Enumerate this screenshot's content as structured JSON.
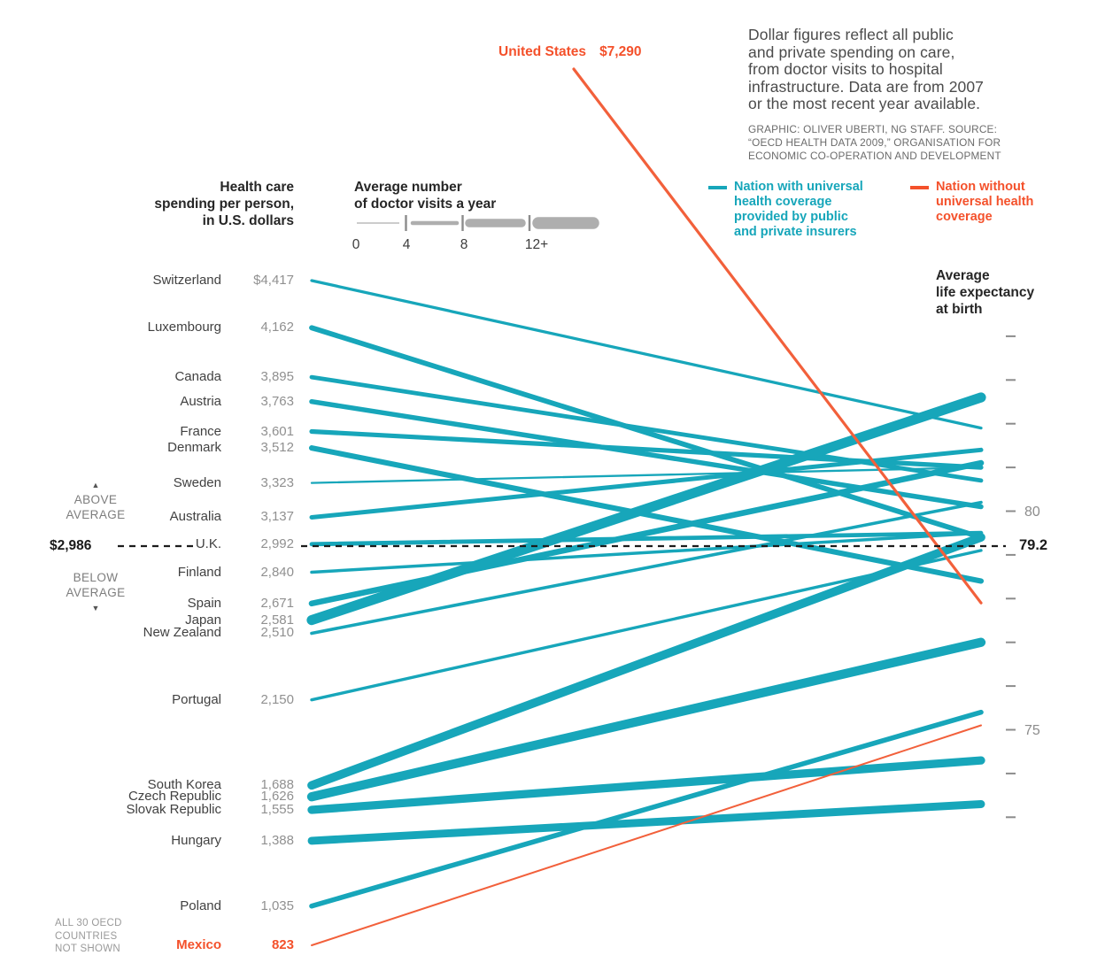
{
  "intro_note": "Dollar figures reflect all public\nand private spending on care,\nfrom doctor visits to hospital\ninfrastructure. Data are from 2007\nor the most recent year available.",
  "credit": "GRAPHIC: OLIVER UBERTI, NG STAFF. SOURCE:\n“OECD HEALTH DATA 2009,” ORGANISATION FOR\nECONOMIC CO-OPERATION AND DEVELOPMENT",
  "legend": {
    "universal": "Nation with universal\nhealth coverage\nprovided by public\nand private insurers",
    "no_universal": "Nation without\nuniversal health\ncoverage"
  },
  "left_axis": {
    "title": "Health care\nspending per person,\nin U.S. dollars",
    "above_average": "ABOVE\nAVERAGE",
    "below_average": "BELOW\nAVERAGE",
    "arrow_up": "▲",
    "arrow_down": "▼",
    "average_label": "$2,986"
  },
  "visits_scale": {
    "title": "Average number\nof doctor visits a year",
    "tick_labels": [
      "0",
      "4",
      "8",
      "12+"
    ]
  },
  "right_axis": {
    "title": "Average\nlife expectancy\nat birth",
    "average_label": "79.2"
  },
  "us_callout": {
    "name": "United States",
    "value": "$7,290"
  },
  "footnote": "ALL 30 OECD\nCOUNTRIES\nNOT SHOWN",
  "colors": {
    "teal": "#17a6ba",
    "orange": "#f4512b",
    "orange_line": "#f2603b",
    "scale_gray": "#aeaeae",
    "tick_gray": "#8c8c8c",
    "dash_black": "#1c1c1c"
  },
  "chart_data": {
    "type": "slopegraph",
    "title": "Health care spending per person vs. average life expectancy at birth (OECD, 2007)",
    "left_metric": "Health care spending per person, U.S. dollars",
    "right_metric": "Average life expectancy at birth, years",
    "thickness_metric": "Average number of doctor visits a year",
    "thickness_scale_ticks": [
      0,
      4,
      8,
      12
    ],
    "left_range": [
      823,
      4417
    ],
    "right_ticks": [
      84,
      83,
      82,
      81,
      80,
      79,
      78,
      77,
      76,
      75,
      74,
      73
    ],
    "right_labeled_ticks": [
      80,
      75
    ],
    "average": {
      "spending": 2986,
      "life_expectancy": 79.2
    },
    "countries": [
      {
        "name": "Switzerland",
        "spending": 4417,
        "spending_label": "$4,417",
        "doctor_visits": 4.0,
        "life_expectancy": 81.9,
        "universal_coverage": true
      },
      {
        "name": "Luxembourg",
        "spending": 4162,
        "spending_label": "4,162",
        "doctor_visits": 7.1,
        "life_expectancy": 79.4,
        "universal_coverage": true
      },
      {
        "name": "Canada",
        "spending": 3895,
        "spending_label": "3,895",
        "doctor_visits": 5.8,
        "life_expectancy": 80.7,
        "universal_coverage": true
      },
      {
        "name": "Austria",
        "spending": 3763,
        "spending_label": "3,763",
        "doctor_visits": 6.7,
        "life_expectancy": 80.1,
        "universal_coverage": true
      },
      {
        "name": "France",
        "spending": 3601,
        "spending_label": "3,601",
        "doctor_visits": 6.4,
        "life_expectancy": 81.0,
        "universal_coverage": true
      },
      {
        "name": "Denmark",
        "spending": 3512,
        "spending_label": "3,512",
        "doctor_visits": 7.5,
        "life_expectancy": 78.4,
        "universal_coverage": true
      },
      {
        "name": "Sweden",
        "spending": 3323,
        "spending_label": "3,323",
        "doctor_visits": 2.8,
        "life_expectancy": 81.0,
        "universal_coverage": true
      },
      {
        "name": "Australia",
        "spending": 3137,
        "spending_label": "3,137",
        "doctor_visits": 6.1,
        "life_expectancy": 81.4,
        "universal_coverage": true
      },
      {
        "name": "U.K.",
        "spending": 2992,
        "spending_label": "2,992",
        "doctor_visits": 5.9,
        "life_expectancy": 79.5,
        "universal_coverage": true
      },
      {
        "name": "Finland",
        "spending": 2840,
        "spending_label": "2,840",
        "doctor_visits": 4.3,
        "life_expectancy": 79.5,
        "universal_coverage": true
      },
      {
        "name": "Spain",
        "spending": 2671,
        "spending_label": "2,671",
        "doctor_visits": 8.1,
        "life_expectancy": 81.1,
        "universal_coverage": true
      },
      {
        "name": "Japan",
        "spending": 2581,
        "spending_label": "2,581",
        "doctor_visits": 13.6,
        "life_expectancy": 82.6,
        "universal_coverage": true
      },
      {
        "name": "New Zealand",
        "spending": 2510,
        "spending_label": "2,510",
        "doctor_visits": 4.4,
        "life_expectancy": 80.2,
        "universal_coverage": true
      },
      {
        "name": "Portugal",
        "spending": 2150,
        "spending_label": "2,150",
        "doctor_visits": 4.1,
        "life_expectancy": 79.1,
        "universal_coverage": true
      },
      {
        "name": "South Korea",
        "spending": 1688,
        "spending_label": "1,688",
        "doctor_visits": 11.8,
        "life_expectancy": 79.4,
        "universal_coverage": true
      },
      {
        "name": "Czech Republic",
        "spending": 1626,
        "spending_label": "1,626",
        "doctor_visits": 12.6,
        "life_expectancy": 77.0,
        "universal_coverage": true
      },
      {
        "name": "Slovak Republic",
        "spending": 1555,
        "spending_label": "1,555",
        "doctor_visits": 11.3,
        "life_expectancy": 74.3,
        "universal_coverage": true
      },
      {
        "name": "Hungary",
        "spending": 1388,
        "spending_label": "1,388",
        "doctor_visits": 10.9,
        "life_expectancy": 73.3,
        "universal_coverage": true
      },
      {
        "name": "Poland",
        "spending": 1035,
        "spending_label": "1,035",
        "doctor_visits": 6.8,
        "life_expectancy": 75.4,
        "universal_coverage": true
      },
      {
        "name": "Mexico",
        "spending": 823,
        "spending_label": "823",
        "doctor_visits": 2.5,
        "life_expectancy": 75.1,
        "universal_coverage": false
      },
      {
        "name": "United States",
        "spending": 7290,
        "spending_label": "$7,290",
        "doctor_visits": 3.9,
        "life_expectancy": 77.9,
        "universal_coverage": false,
        "off_scale": true
      }
    ]
  }
}
